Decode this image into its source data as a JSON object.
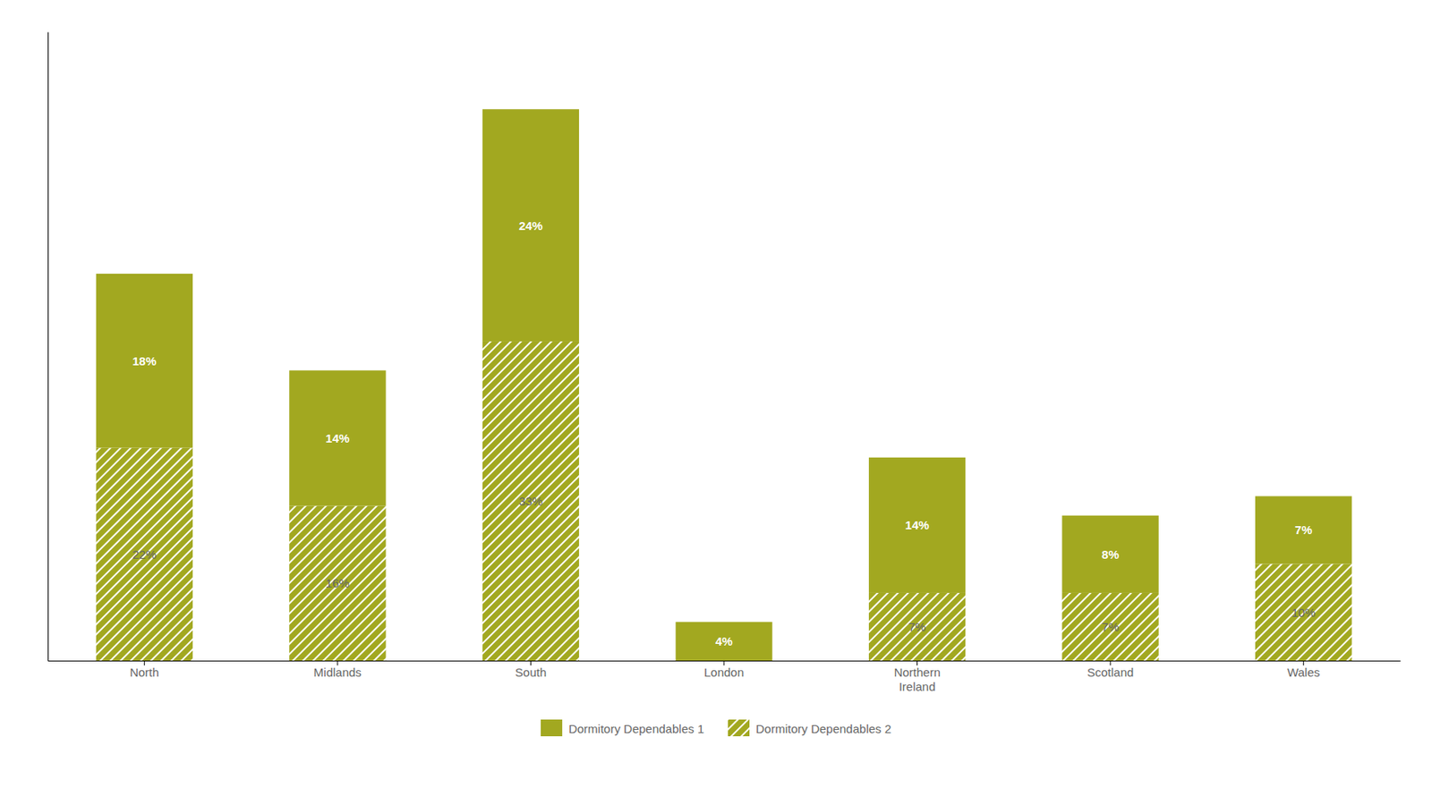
{
  "chart_data": {
    "type": "bar",
    "stacked": true,
    "categories": [
      "North",
      "Midlands",
      "South",
      "London",
      "Northern\nIreland",
      "Scotland",
      "Wales"
    ],
    "series": [
      {
        "name": "Dormitory Dependables 2",
        "color": "#A2A820",
        "values": [
          22,
          16,
          33,
          0,
          7,
          7,
          10
        ],
        "value_labels": [
          "22%",
          "16%",
          "33%",
          null,
          "7%",
          "7%",
          "10%"
        ]
      },
      {
        "name": "Dormitory Dependables 1",
        "color": "#A2A820",
        "values": [
          18,
          14,
          24,
          4,
          14,
          8,
          7
        ],
        "value_labels": [
          "18%",
          "14%",
          "24%",
          "4%",
          "14%",
          "8%",
          "7%"
        ]
      }
    ],
    "ylim": [
      0,
      65
    ],
    "tick_labels": "x",
    "data_labels": true,
    "legend": "bottom"
  }
}
